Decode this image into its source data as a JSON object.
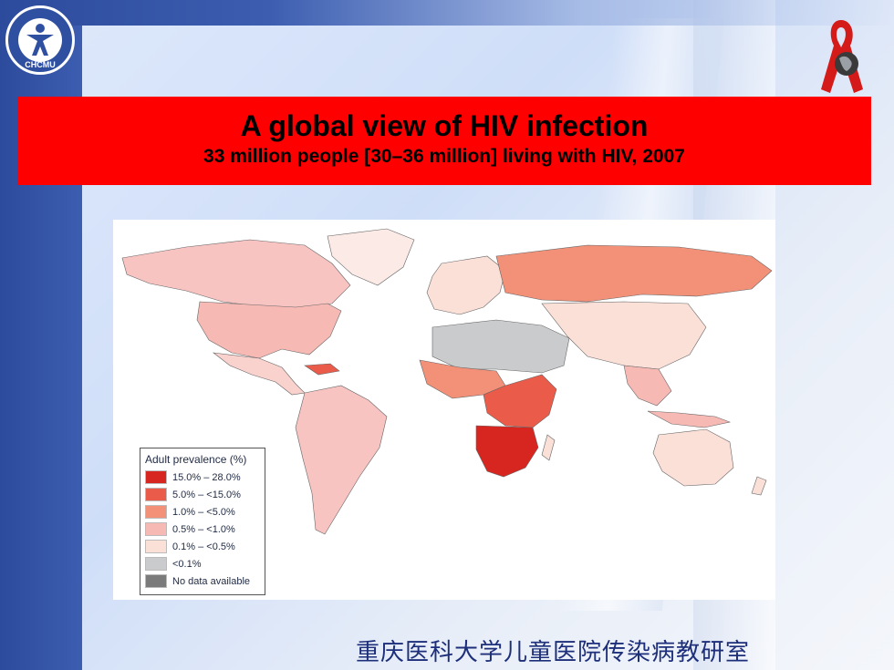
{
  "logo": {
    "text": "CHCMU",
    "icon": "person-emblem-icon"
  },
  "ribbon": {
    "icon": "red-ribbon-globe-icon"
  },
  "banner": {
    "title": "A global view of HIV infection",
    "subtitle": "33 million people [30–36 million] living with HIV, 2007"
  },
  "legend": {
    "title": "Adult prevalence (%)",
    "items": [
      {
        "label": "15.0% – 28.0%",
        "color": "#d7261f"
      },
      {
        "label": "5.0% – <15.0%",
        "color": "#ea5b4a"
      },
      {
        "label": "1.0% – <5.0%",
        "color": "#f29078"
      },
      {
        "label": "0.5% – <1.0%",
        "color": "#f7b9b4"
      },
      {
        "label": "0.1% – <0.5%",
        "color": "#fbe0d8"
      },
      {
        "label": "<0.1%",
        "color": "#c9cbcc"
      },
      {
        "label": "No data available",
        "color": "#7b7b7b"
      }
    ]
  },
  "footer": {
    "text": "重庆医科大学儿童医院传染病教研室"
  },
  "colors": {
    "banner": "#ff0000",
    "left_bar": "#2d4b9c",
    "footer_text": "#1d2f7a"
  }
}
